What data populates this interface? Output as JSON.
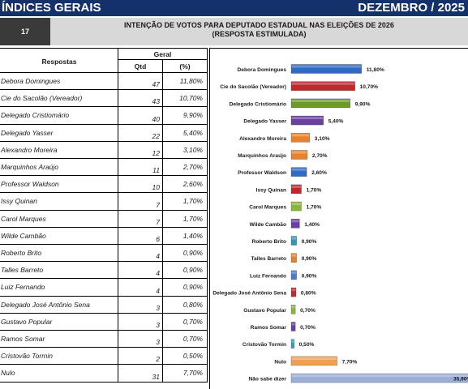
{
  "header": {
    "left_title": "ÍNDICES GERAIS",
    "right_title": "DEZEMBRO / 2025",
    "number": "17",
    "question_line1": "INTENÇÃO DE VOTOS PARA DEPUTADO ESTADUAL NAS ELEIÇÕES DE 2026",
    "question_line2": "(RESPOSTA ESTIMULADA)"
  },
  "table": {
    "col_respostas": "Respostas",
    "col_group": "Geral",
    "col_qtd": "Qtd",
    "col_pct": "(%)",
    "rows": [
      {
        "name": "Debora Domingues",
        "qtd": "47",
        "pct": "11,80%"
      },
      {
        "name": "Cie do Sacolão (Vereador)",
        "qtd": "43",
        "pct": "10,70%"
      },
      {
        "name": "Delegado Cristiomário",
        "qtd": "40",
        "pct": "9,90%"
      },
      {
        "name": "Delegado Yasser",
        "qtd": "22",
        "pct": "5,40%"
      },
      {
        "name": "Alexandro Moreira",
        "qtd": "12",
        "pct": "3,10%"
      },
      {
        "name": "Marquinhos Araújo",
        "qtd": "11",
        "pct": "2,70%"
      },
      {
        "name": "Professor Waldson",
        "qtd": "10",
        "pct": "2,60%"
      },
      {
        "name": "Issy Quinan",
        "qtd": "7",
        "pct": "1,70%"
      },
      {
        "name": "Carol Marques",
        "qtd": "7",
        "pct": "1,70%"
      },
      {
        "name": "Wilde Cambão",
        "qtd": "6",
        "pct": "1,40%"
      },
      {
        "name": "Roberto Brito",
        "qtd": "4",
        "pct": "0,90%"
      },
      {
        "name": "Talles Barreto",
        "qtd": "4",
        "pct": "0,90%"
      },
      {
        "name": "Luiz Fernando",
        "qtd": "4",
        "pct": "0,90%"
      },
      {
        "name": "Delegado José Antônio Sena",
        "qtd": "3",
        "pct": "0,80%"
      },
      {
        "name": "Gustavo Popular",
        "qtd": "3",
        "pct": "0,70%"
      },
      {
        "name": "Ramos Somar",
        "qtd": "3",
        "pct": "0,70%"
      },
      {
        "name": "Cristovão Tormin",
        "qtd": "2",
        "pct": "0,50%"
      },
      {
        "name": "Nulo",
        "qtd": "31",
        "pct": "7,70%"
      }
    ]
  },
  "chart_data": {
    "type": "bar",
    "orientation": "horizontal",
    "categories": [
      "Debora Domingues",
      "Cie do Sacolão (Vereador)",
      "Delegado Cristiomário",
      "Delegado Yasser",
      "Alexandro Moreira",
      "Marquinhos Araújo",
      "Professor Waldson",
      "Issy Quinan",
      "Carol Marques",
      "Wilde Cambão",
      "Roberto Brito",
      "Talles Barreto",
      "Luiz Fernando",
      "Delegado José Antônio Sena",
      "Gustavo Popular",
      "Ramos Somar",
      "Cristovão Tormin",
      "Nulo",
      "Não sabe dizer"
    ],
    "values": [
      11.8,
      10.7,
      9.9,
      5.4,
      3.1,
      2.7,
      2.6,
      1.7,
      1.7,
      1.4,
      0.9,
      0.9,
      0.9,
      0.8,
      0.7,
      0.7,
      0.5,
      7.7,
      35.9
    ],
    "value_labels": [
      "11,80%",
      "10,70%",
      "9,90%",
      "5,40%",
      "3,10%",
      "2,70%",
      "2,60%",
      "1,70%",
      "1,70%",
      "1,40%",
      "0,90%",
      "0,90%",
      "0,90%",
      "0,80%",
      "0,70%",
      "0,70%",
      "0,50%",
      "7,70%",
      "35,90%"
    ],
    "colors": [
      "#2e6bc4",
      "#c0282e",
      "#6a9a2a",
      "#6b3fa0",
      "#e8822a",
      "#e8822a",
      "#2e6bc4",
      "#c0282e",
      "#8ab63a",
      "#6b3fa0",
      "#2e9ab8",
      "#e8822a",
      "#4a7ad0",
      "#c0282e",
      "#8ab63a",
      "#6b3fa0",
      "#2ea0c0",
      "#f0a050",
      "#9aaed8"
    ]
  }
}
